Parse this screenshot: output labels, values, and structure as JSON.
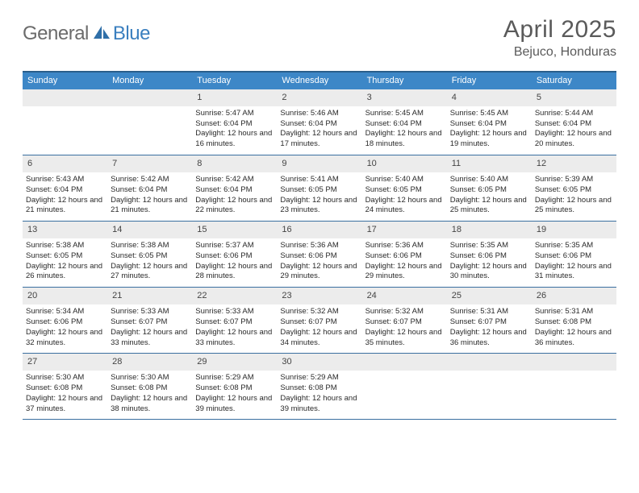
{
  "logo": {
    "general": "General",
    "blue": "Blue"
  },
  "title": "April 2025",
  "location": "Bejuco, Honduras",
  "dayHeaders": [
    "Sunday",
    "Monday",
    "Tuesday",
    "Wednesday",
    "Thursday",
    "Friday",
    "Saturday"
  ],
  "colors": {
    "headerBg": "#3d87c7",
    "headerBorderTop": "#2a5e8a",
    "weekBorder": "#3a6fa0",
    "dayNumBg": "#ececec",
    "textGray": "#5a5a5a",
    "logoGray": "#6b6b6b",
    "logoBlue": "#3a7fbf"
  },
  "weeks": [
    [
      {
        "empty": true
      },
      {
        "empty": true
      },
      {
        "n": "1",
        "sr": "Sunrise: 5:47 AM",
        "ss": "Sunset: 6:04 PM",
        "dl": "Daylight: 12 hours and 16 minutes."
      },
      {
        "n": "2",
        "sr": "Sunrise: 5:46 AM",
        "ss": "Sunset: 6:04 PM",
        "dl": "Daylight: 12 hours and 17 minutes."
      },
      {
        "n": "3",
        "sr": "Sunrise: 5:45 AM",
        "ss": "Sunset: 6:04 PM",
        "dl": "Daylight: 12 hours and 18 minutes."
      },
      {
        "n": "4",
        "sr": "Sunrise: 5:45 AM",
        "ss": "Sunset: 6:04 PM",
        "dl": "Daylight: 12 hours and 19 minutes."
      },
      {
        "n": "5",
        "sr": "Sunrise: 5:44 AM",
        "ss": "Sunset: 6:04 PM",
        "dl": "Daylight: 12 hours and 20 minutes."
      }
    ],
    [
      {
        "n": "6",
        "sr": "Sunrise: 5:43 AM",
        "ss": "Sunset: 6:04 PM",
        "dl": "Daylight: 12 hours and 21 minutes."
      },
      {
        "n": "7",
        "sr": "Sunrise: 5:42 AM",
        "ss": "Sunset: 6:04 PM",
        "dl": "Daylight: 12 hours and 21 minutes."
      },
      {
        "n": "8",
        "sr": "Sunrise: 5:42 AM",
        "ss": "Sunset: 6:04 PM",
        "dl": "Daylight: 12 hours and 22 minutes."
      },
      {
        "n": "9",
        "sr": "Sunrise: 5:41 AM",
        "ss": "Sunset: 6:05 PM",
        "dl": "Daylight: 12 hours and 23 minutes."
      },
      {
        "n": "10",
        "sr": "Sunrise: 5:40 AM",
        "ss": "Sunset: 6:05 PM",
        "dl": "Daylight: 12 hours and 24 minutes."
      },
      {
        "n": "11",
        "sr": "Sunrise: 5:40 AM",
        "ss": "Sunset: 6:05 PM",
        "dl": "Daylight: 12 hours and 25 minutes."
      },
      {
        "n": "12",
        "sr": "Sunrise: 5:39 AM",
        "ss": "Sunset: 6:05 PM",
        "dl": "Daylight: 12 hours and 25 minutes."
      }
    ],
    [
      {
        "n": "13",
        "sr": "Sunrise: 5:38 AM",
        "ss": "Sunset: 6:05 PM",
        "dl": "Daylight: 12 hours and 26 minutes."
      },
      {
        "n": "14",
        "sr": "Sunrise: 5:38 AM",
        "ss": "Sunset: 6:05 PM",
        "dl": "Daylight: 12 hours and 27 minutes."
      },
      {
        "n": "15",
        "sr": "Sunrise: 5:37 AM",
        "ss": "Sunset: 6:06 PM",
        "dl": "Daylight: 12 hours and 28 minutes."
      },
      {
        "n": "16",
        "sr": "Sunrise: 5:36 AM",
        "ss": "Sunset: 6:06 PM",
        "dl": "Daylight: 12 hours and 29 minutes."
      },
      {
        "n": "17",
        "sr": "Sunrise: 5:36 AM",
        "ss": "Sunset: 6:06 PM",
        "dl": "Daylight: 12 hours and 29 minutes."
      },
      {
        "n": "18",
        "sr": "Sunrise: 5:35 AM",
        "ss": "Sunset: 6:06 PM",
        "dl": "Daylight: 12 hours and 30 minutes."
      },
      {
        "n": "19",
        "sr": "Sunrise: 5:35 AM",
        "ss": "Sunset: 6:06 PM",
        "dl": "Daylight: 12 hours and 31 minutes."
      }
    ],
    [
      {
        "n": "20",
        "sr": "Sunrise: 5:34 AM",
        "ss": "Sunset: 6:06 PM",
        "dl": "Daylight: 12 hours and 32 minutes."
      },
      {
        "n": "21",
        "sr": "Sunrise: 5:33 AM",
        "ss": "Sunset: 6:07 PM",
        "dl": "Daylight: 12 hours and 33 minutes."
      },
      {
        "n": "22",
        "sr": "Sunrise: 5:33 AM",
        "ss": "Sunset: 6:07 PM",
        "dl": "Daylight: 12 hours and 33 minutes."
      },
      {
        "n": "23",
        "sr": "Sunrise: 5:32 AM",
        "ss": "Sunset: 6:07 PM",
        "dl": "Daylight: 12 hours and 34 minutes."
      },
      {
        "n": "24",
        "sr": "Sunrise: 5:32 AM",
        "ss": "Sunset: 6:07 PM",
        "dl": "Daylight: 12 hours and 35 minutes."
      },
      {
        "n": "25",
        "sr": "Sunrise: 5:31 AM",
        "ss": "Sunset: 6:07 PM",
        "dl": "Daylight: 12 hours and 36 minutes."
      },
      {
        "n": "26",
        "sr": "Sunrise: 5:31 AM",
        "ss": "Sunset: 6:08 PM",
        "dl": "Daylight: 12 hours and 36 minutes."
      }
    ],
    [
      {
        "n": "27",
        "sr": "Sunrise: 5:30 AM",
        "ss": "Sunset: 6:08 PM",
        "dl": "Daylight: 12 hours and 37 minutes."
      },
      {
        "n": "28",
        "sr": "Sunrise: 5:30 AM",
        "ss": "Sunset: 6:08 PM",
        "dl": "Daylight: 12 hours and 38 minutes."
      },
      {
        "n": "29",
        "sr": "Sunrise: 5:29 AM",
        "ss": "Sunset: 6:08 PM",
        "dl": "Daylight: 12 hours and 39 minutes."
      },
      {
        "n": "30",
        "sr": "Sunrise: 5:29 AM",
        "ss": "Sunset: 6:08 PM",
        "dl": "Daylight: 12 hours and 39 minutes."
      },
      {
        "empty": true
      },
      {
        "empty": true
      },
      {
        "empty": true
      }
    ]
  ]
}
